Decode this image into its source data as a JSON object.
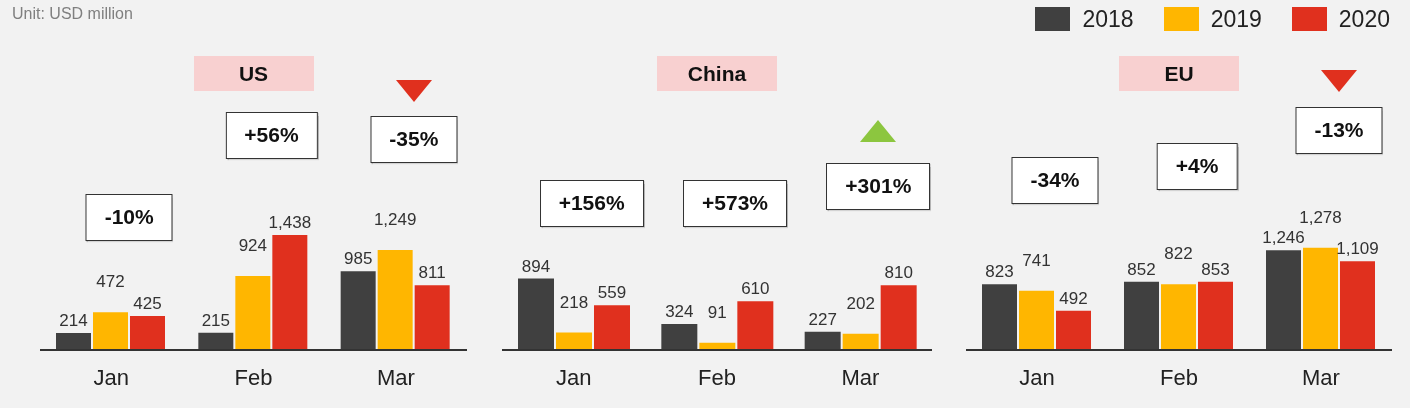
{
  "chart_data": [
    {
      "type": "bar",
      "title": "US",
      "subtitle": "Unit: USD million",
      "categories": [
        "Jan",
        "Feb",
        "Mar"
      ],
      "series": [
        {
          "color": "#404040",
          "values": [
            214,
            215,
            985
          ],
          "value_labels": [
            "214",
            "215",
            "985"
          ]
        },
        {
          "color": "#ffb600",
          "values": [
            472,
            924,
            1249
          ],
          "value_labels": [
            "472",
            "924",
            "1,249"
          ]
        },
        {
          "color": "#e0301e",
          "values": [
            425,
            1438,
            811
          ],
          "value_labels": [
            "425",
            "1,438",
            "811"
          ]
        }
      ],
      "tick_labels": "x",
      "annotations": [
        "-10%",
        "+56%",
        "-35%"
      ]
    },
    {
      "type": "bar",
      "title": "China",
      "categories": [
        "Jan",
        "Feb",
        "Mar"
      ],
      "series": [
        {
          "color": "#404040",
          "values": [
            894,
            324,
            227
          ],
          "value_labels": [
            "894",
            "324",
            "227"
          ]
        },
        {
          "color": "#ffb600",
          "values": [
            218,
            91,
            202
          ],
          "value_labels": [
            "218",
            "91",
            "202"
          ]
        },
        {
          "color": "#e0301e",
          "values": [
            559,
            610,
            810
          ],
          "value_labels": [
            "559",
            "610",
            "810"
          ]
        }
      ],
      "tick_labels": "x",
      "annotations": [
        "+156%",
        "+573%",
        "+301%"
      ]
    },
    {
      "type": "bar",
      "title": "EU",
      "categories": [
        "Jan",
        "Feb",
        "Mar"
      ],
      "series": [
        {
          "name": "2018",
          "color": "#404040",
          "values": [
            823,
            852,
            1246
          ],
          "value_labels": [
            "823",
            "852",
            "1,246"
          ]
        },
        {
          "name": "2019",
          "color": "#ffb600",
          "values": [
            741,
            822,
            1278
          ],
          "value_labels": [
            "741",
            "822",
            "1,278"
          ]
        },
        {
          "name": "2020",
          "color": "#e0301e",
          "values": [
            492,
            853,
            1109
          ],
          "value_labels": [
            "492",
            "853",
            "1,109"
          ]
        }
      ],
      "tick_labels": "x",
      "legend": "top right",
      "annotations": [
        "-34%",
        "+4%",
        "-13%"
      ]
    }
  ]
}
